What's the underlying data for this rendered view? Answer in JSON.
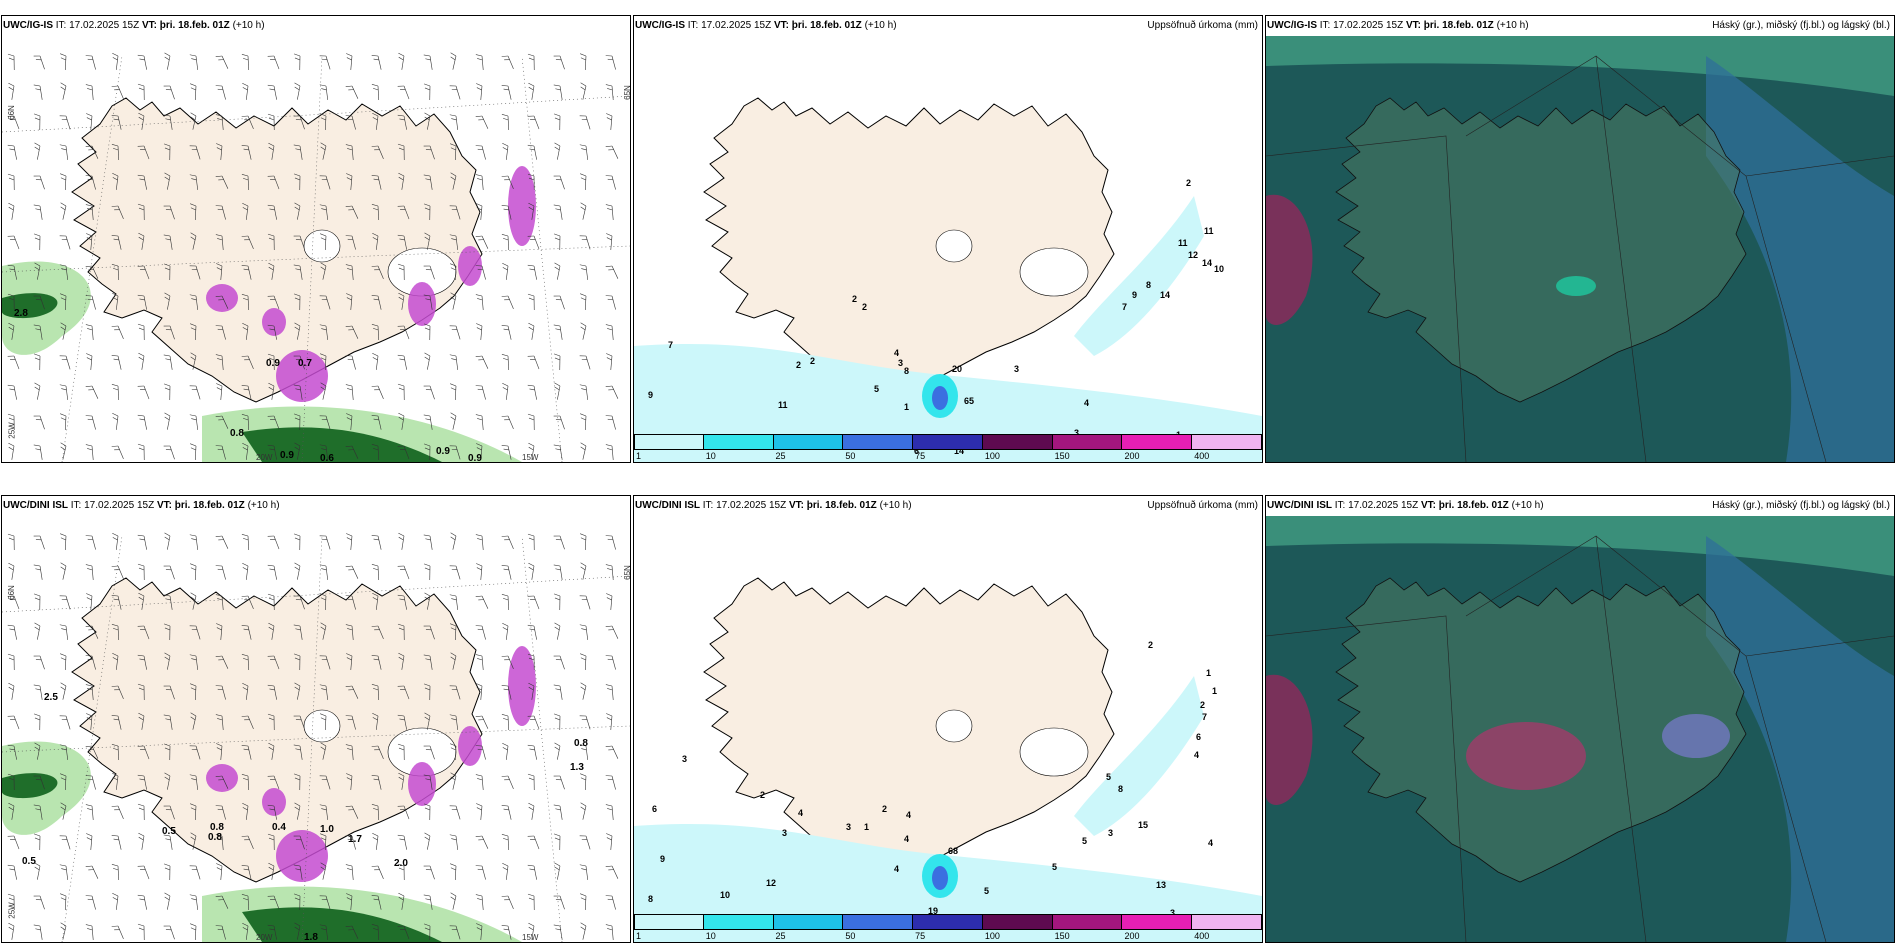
{
  "panels": [
    {
      "model": "UWC/IG-IS",
      "it_label": "IT:",
      "it": "17.02.2025 15Z",
      "vt_label": "VT:",
      "vt": "þri. 18.feb. 01Z",
      "lead": "(+10 h)",
      "right_title": ""
    },
    {
      "model": "UWC/IG-IS",
      "it_label": "IT:",
      "it": "17.02.2025 15Z",
      "vt_label": "VT:",
      "vt": "þri. 18.feb. 01Z",
      "lead": "(+10 h)",
      "right_title": "Uppsöfnuð úrkoma (mm)"
    },
    {
      "model": "UWC/IG-IS",
      "it_label": "IT:",
      "it": "17.02.2025 15Z",
      "vt_label": "VT:",
      "vt": "þri. 18.feb. 01Z",
      "lead": "(+10 h)",
      "right_title": "Háský (gr.), miðský (fj.bl.) og lágský (bl.)"
    },
    {
      "model": "UWC/DINI ISL",
      "it_label": "IT:",
      "it": "17.02.2025 15Z",
      "vt_label": "VT:",
      "vt": "þri. 18.feb. 01Z",
      "lead": "(+10 h)",
      "right_title": ""
    },
    {
      "model": "UWC/DINI ISL",
      "it_label": "IT:",
      "it": "17.02.2025 15Z",
      "vt_label": "VT:",
      "vt": "þri. 18.feb. 01Z",
      "lead": "(+10 h)",
      "right_title": "Uppsöfnuð úrkoma (mm)"
    },
    {
      "model": "UWC/DINI ISL",
      "it_label": "IT:",
      "it": "17.02.2025 15Z",
      "vt_label": "VT:",
      "vt": "þri. 18.feb. 01Z",
      "lead": "(+10 h)",
      "right_title": "Háský (gr.), miðský (fj.bl.) og lágský (bl.)"
    }
  ],
  "axis_labels": {
    "lat66": "66N",
    "lat65": "65N",
    "lon25": "25W",
    "lon20": "20W",
    "lon15": "15W"
  },
  "colorbar": {
    "ticks": [
      "1",
      "10",
      "25",
      "50",
      "75",
      "100",
      "150",
      "200",
      "400"
    ],
    "colors": [
      "#ccf7fa",
      "#33e5ec",
      "#1ec1e8",
      "#3b6fe0",
      "#2d2dae",
      "#5e0a50",
      "#a3167e",
      "#e61fb4",
      "#f0b4f0"
    ]
  },
  "colors": {
    "land": "#f9eee2",
    "sea": "#ffffff",
    "coast": "#000000",
    "cloud_bg": "#1d5858",
    "green_light": "#b9e5b0",
    "green_dark": "#1f6e2a",
    "purple": "#c44bd0"
  },
  "precip_labels_top": [
    "7",
    "9",
    "11",
    "2",
    "2",
    "4",
    "3",
    "8",
    "20",
    "5",
    "1",
    "65",
    "14",
    "6",
    "4",
    "3",
    "3",
    "1",
    "1",
    "5",
    "2",
    "11",
    "11",
    "12",
    "14",
    "10",
    "14",
    "8",
    "9",
    "7",
    "2",
    "2"
  ],
  "precip_labels_bottom": [
    "3",
    "6",
    "9",
    "8",
    "10",
    "12",
    "2",
    "3",
    "4",
    "3",
    "1",
    "2",
    "4",
    "4",
    "68",
    "19",
    "4",
    "5",
    "5",
    "5",
    "3",
    "3",
    "13",
    "15",
    "8",
    "5",
    "4",
    "6",
    "7",
    "2",
    "1",
    "1",
    "2",
    "4"
  ],
  "wind_labels_top": [
    "2.8",
    "0.8",
    "0.9",
    "0.6",
    "0.9",
    "0.9",
    "0.9",
    "0.7"
  ],
  "wind_labels_bottom": [
    "2.5",
    "0.5",
    "0.5",
    "0.8",
    "0.4",
    "1.0",
    "1.7",
    "2.0",
    "1.8",
    "0.8",
    "1.3",
    "0.8"
  ]
}
